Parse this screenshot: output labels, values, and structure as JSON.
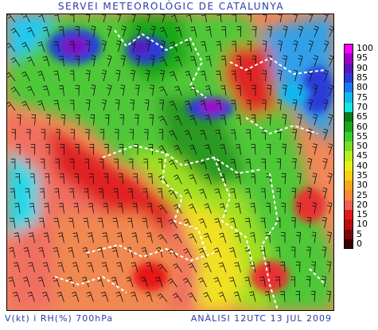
{
  "header": {
    "title": "SERVEI METEOROLÒGIC DE CATALUNYA"
  },
  "footer": {
    "variable": "V(kt) i RH(%) 700hPa",
    "analysis": "ANÀLISI 12UTC 13 JUL 2009"
  },
  "legend": {
    "entries": [
      {
        "label": "100",
        "color": "#ff00ff"
      },
      {
        "label": "95",
        "color": "#a000c8"
      },
      {
        "label": "90",
        "color": "#5a18b8"
      },
      {
        "label": "85",
        "color": "#2a3ad8"
      },
      {
        "label": "80",
        "color": "#1a78f0"
      },
      {
        "label": "75",
        "color": "#10b8f0"
      },
      {
        "label": "70",
        "color": "#10e8e0"
      },
      {
        "label": "65",
        "color": "#0a7a1a"
      },
      {
        "label": "60",
        "color": "#18a818"
      },
      {
        "label": "55",
        "color": "#3ad030"
      },
      {
        "label": "50",
        "color": "#78e020"
      },
      {
        "label": "45",
        "color": "#b8f018"
      },
      {
        "label": "40",
        "color": "#e8f018"
      },
      {
        "label": "35",
        "color": "#f8d010"
      },
      {
        "label": "30",
        "color": "#f8a818"
      },
      {
        "label": "25",
        "color": "#f88838"
      },
      {
        "label": "20",
        "color": "#f06058"
      },
      {
        "label": "15",
        "color": "#e81818"
      },
      {
        "label": "10",
        "color": "#b81010"
      },
      {
        "label": "5",
        "color": "#7a0808"
      },
      {
        "label": "0",
        "color": "#3a0000"
      }
    ]
  }
}
